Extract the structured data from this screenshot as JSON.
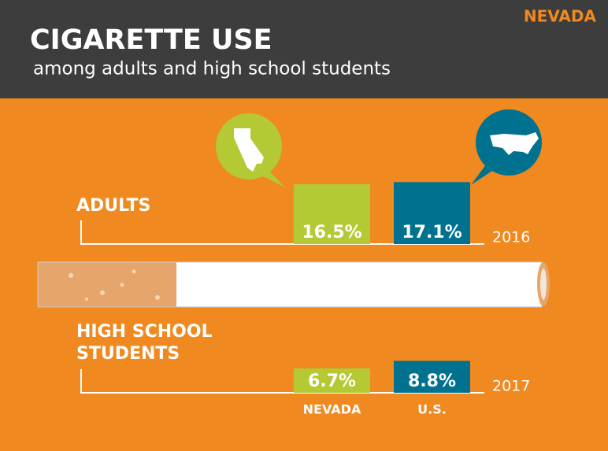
{
  "chart_data": {
    "type": "bar",
    "badge": "NEVADA",
    "title": "CIGARETTE USE",
    "subtitle": "among adults and high school students",
    "categories": [
      "ADULTS",
      "HIGH SCHOOL STUDENTS"
    ],
    "years": [
      "2016",
      "2017"
    ],
    "series": [
      {
        "name": "NEVADA",
        "color": "#b5c934",
        "values": [
          16.5,
          6.7
        ],
        "value_labels": [
          "16.5%",
          "6.7%"
        ]
      },
      {
        "name": "U.S.",
        "color": "#00728f",
        "values": [
          17.1,
          8.8
        ],
        "value_labels": [
          "17.1%",
          "8.8%"
        ]
      }
    ]
  }
}
